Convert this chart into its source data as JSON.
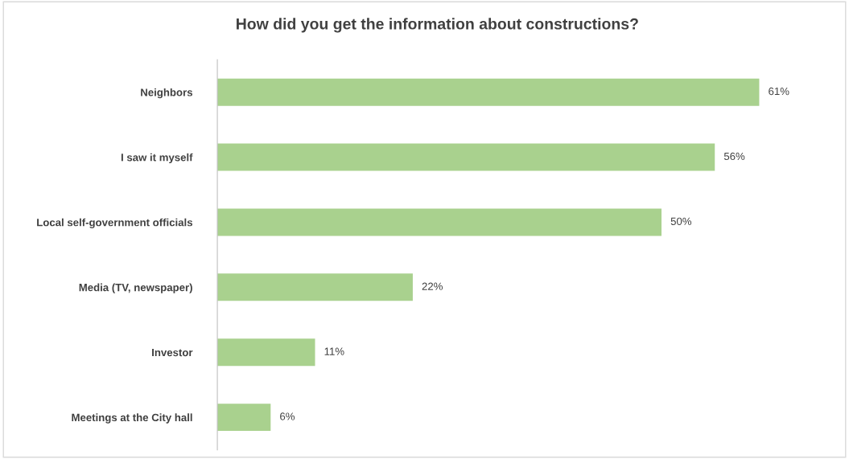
{
  "chart_data": {
    "type": "bar",
    "orientation": "horizontal",
    "title": "How did you get the information about constructions?",
    "categories": [
      "Neighbors",
      "I saw it myself",
      "Local self-government officials",
      "Media (TV, newspaper)",
      "Investor",
      "Meetings at the City hall"
    ],
    "values": [
      61,
      56,
      50,
      22,
      11,
      6
    ],
    "value_labels": [
      "61%",
      "56%",
      "50%",
      "22%",
      "11%",
      "6%"
    ],
    "color": "#a9d18e",
    "grid": false,
    "legend": false
  }
}
